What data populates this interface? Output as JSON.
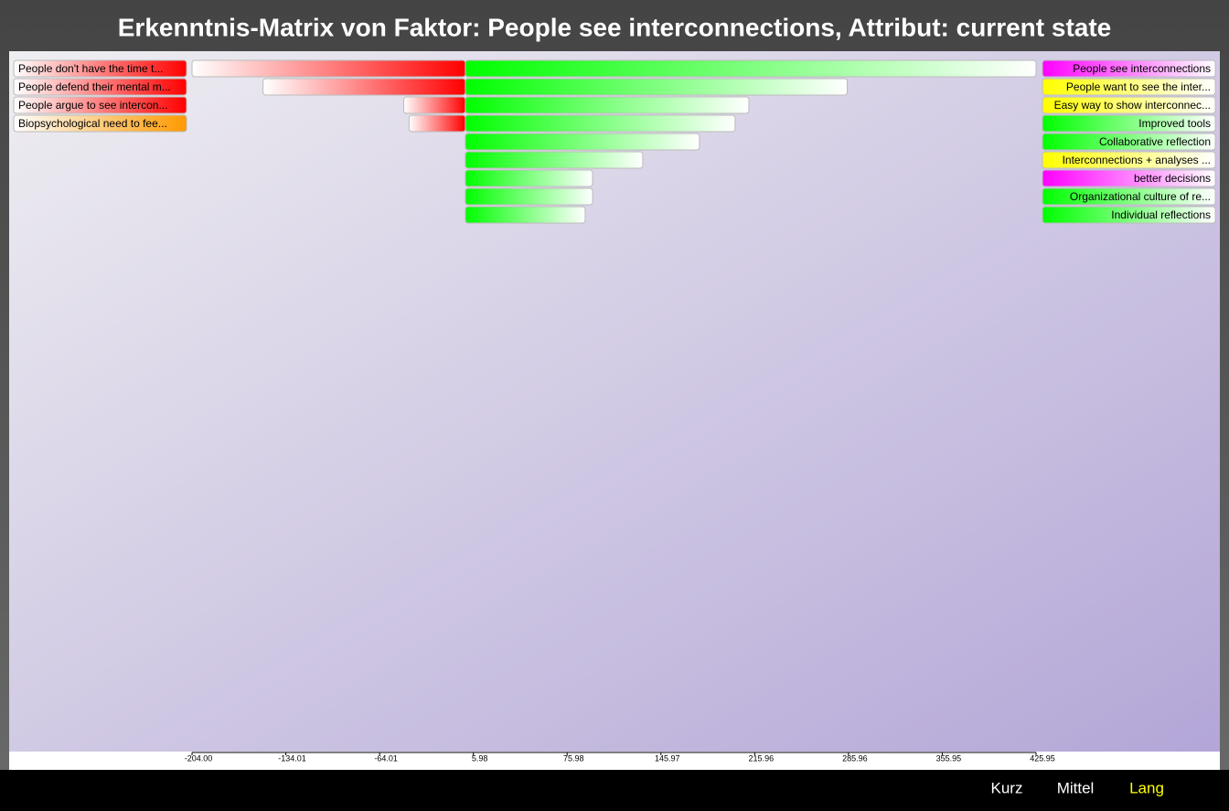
{
  "chart_data": {
    "type": "bar",
    "title": "Erkenntnis-Matrix von Faktor: People see interconnections, Attribut: current state",
    "xlim": [
      -204,
      425.95
    ],
    "xticks": [
      {
        "value": -204,
        "label": "-204.00"
      },
      -134.01,
      -64.01,
      5.98,
      75.98,
      145.97,
      215.96,
      285.96,
      355.95,
      425.95
    ],
    "series": [
      {
        "side": "left",
        "color": "#ff0000",
        "categories": [
          "People don't have the time t...",
          "People defend their mental m...",
          "People argue to see intercon...",
          "Biopsychological need to fee..."
        ],
        "label_colors": [
          "#ff0000",
          "#ff0000",
          "#ff0000",
          "#ff9900"
        ],
        "values": [
          -204,
          -151,
          -46,
          -42
        ]
      },
      {
        "side": "right",
        "color": "#00ff00",
        "categories": [
          "People see interconnections",
          "People want to see the inter...",
          "Easy way to show interconnec...",
          "Improved tools",
          "Collaborative reflection",
          "Interconnections + analyses ...",
          "better decisions",
          "Organizational culture of re...",
          "Individual reflections"
        ],
        "label_colors": [
          "#ff00ff",
          "#ffff00",
          "#ffff00",
          "#00ff00",
          "#00ff00",
          "#ffff00",
          "#ff00ff",
          "#00ff00",
          "#00ff00"
        ],
        "values": [
          425.95,
          285,
          211.6,
          201.3,
          174.7,
          132.4,
          94.9,
          95,
          89.4
        ]
      }
    ]
  },
  "nav": {
    "buttons": [
      "Kurz",
      "Mittel",
      "Lang"
    ]
  }
}
